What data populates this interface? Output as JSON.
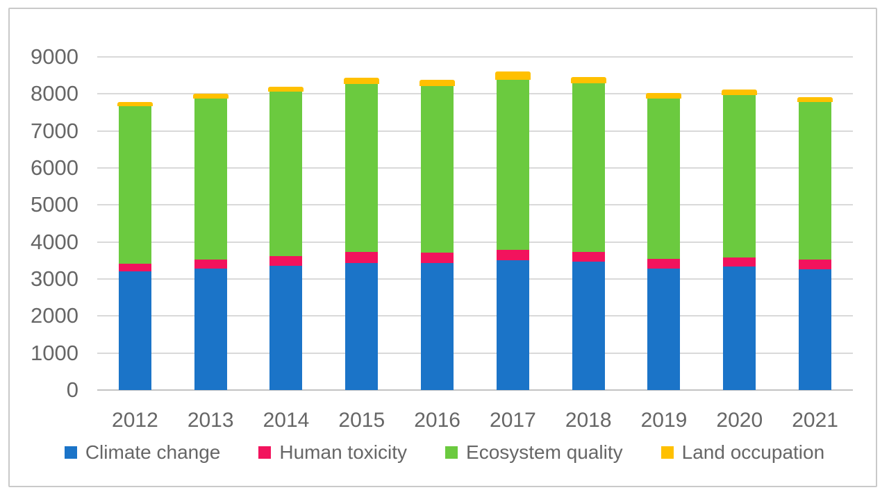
{
  "figure": {
    "background": "#ffffff",
    "border_color": "#c9c9c9"
  },
  "chart_data": {
    "type": "bar",
    "stacked": true,
    "title": "",
    "xlabel": "",
    "ylabel": "",
    "categories": [
      "2012",
      "2013",
      "2014",
      "2015",
      "2016",
      "2017",
      "2018",
      "2019",
      "2020",
      "2021"
    ],
    "series": [
      {
        "name": "Climate change",
        "color": "#1b74c8",
        "values": [
          3200,
          3280,
          3360,
          3440,
          3430,
          3500,
          3460,
          3290,
          3330,
          3260
        ]
      },
      {
        "name": "Human toxicity",
        "color": "#f2135d",
        "values": [
          220,
          250,
          250,
          290,
          290,
          290,
          280,
          250,
          250,
          270
        ]
      },
      {
        "name": "Ecosystem quality",
        "color": "#6bca3f",
        "values": [
          4240,
          4350,
          4450,
          4540,
          4500,
          4600,
          4550,
          4340,
          4380,
          4250
        ]
      },
      {
        "name": "Land occupation",
        "color": "#ffc000",
        "values": [
          120,
          120,
          130,
          175,
          170,
          210,
          170,
          140,
          150,
          140
        ]
      }
    ],
    "totals": [
      7780,
      8000,
      8190,
      8445,
      8390,
      8600,
      8460,
      8020,
      8110,
      7920
    ],
    "ylim": [
      0,
      9000
    ],
    "ytick_step": 1000,
    "ytick_labels": [
      "0",
      "1000",
      "2000",
      "3000",
      "4000",
      "5000",
      "6000",
      "7000",
      "8000",
      "9000"
    ],
    "grid": true,
    "gridline_color": "#d9d9d9",
    "axis_text_color": "#666666",
    "legend_position": "bottom"
  }
}
